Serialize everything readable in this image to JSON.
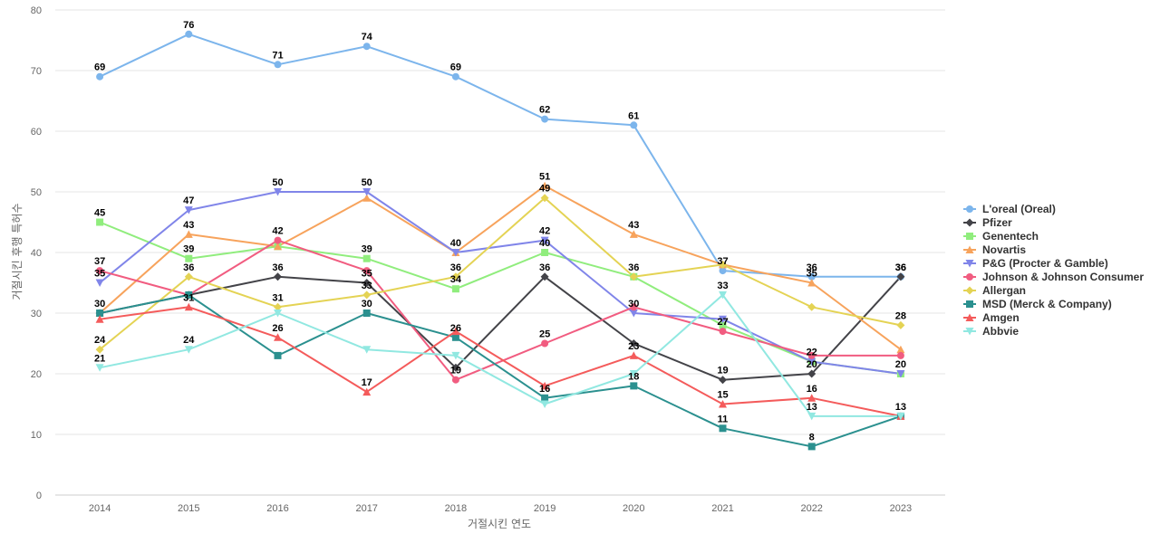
{
  "chart_data": {
    "type": "line",
    "xlabel": "거절시킨 연도",
    "ylabel": "거절시킨 후행 특허수",
    "ylim": [
      0,
      80
    ],
    "yticks": [
      0,
      10,
      20,
      30,
      40,
      50,
      60,
      70,
      80
    ],
    "grid": true,
    "legend_position": "right",
    "x": [
      "2014",
      "2015",
      "2016",
      "2017",
      "2018",
      "2019",
      "2020",
      "2021",
      "2022",
      "2023"
    ],
    "series": [
      {
        "name": "L'oreal (Oreal)",
        "color": "#7cb5ec",
        "marker": "circle",
        "values": [
          69,
          76,
          71,
          74,
          69,
          62,
          61,
          37,
          36,
          36
        ]
      },
      {
        "name": "Pfizer",
        "color": "#434348",
        "marker": "diamond",
        "values": [
          30,
          33,
          36,
          35,
          21,
          36,
          25,
          19,
          20,
          36
        ]
      },
      {
        "name": "Genentech",
        "color": "#90ed7d",
        "marker": "square",
        "values": [
          45,
          39,
          41,
          39,
          34,
          40,
          36,
          28,
          22,
          20
        ]
      },
      {
        "name": "Novartis",
        "color": "#f7a35c",
        "marker": "triangle",
        "values": [
          30,
          43,
          41,
          49,
          40,
          51,
          43,
          38,
          35,
          24
        ]
      },
      {
        "name": "P&G (Procter & Gamble)",
        "color": "#8085e9",
        "marker": "triangle-down",
        "values": [
          35,
          47,
          50,
          50,
          40,
          42,
          30,
          29,
          22,
          20
        ]
      },
      {
        "name": "Johnson & Johnson Consumer",
        "color": "#f15c80",
        "marker": "circle",
        "values": [
          37,
          33,
          42,
          37,
          19,
          25,
          31,
          27,
          23,
          23
        ]
      },
      {
        "name": "Allergan",
        "color": "#e4d354",
        "marker": "diamond",
        "values": [
          24,
          36,
          31,
          33,
          36,
          49,
          36,
          38,
          31,
          28
        ]
      },
      {
        "name": "MSD (Merck & Company)",
        "color": "#2b908f",
        "marker": "square",
        "values": [
          30,
          33,
          23,
          30,
          26,
          16,
          18,
          11,
          8,
          13
        ]
      },
      {
        "name": "Amgen",
        "color": "#f45b5b",
        "marker": "triangle",
        "values": [
          29,
          31,
          26,
          17,
          27,
          18,
          23,
          15,
          16,
          13
        ]
      },
      {
        "name": "Abbvie",
        "color": "#91e8e1",
        "marker": "triangle-down",
        "values": [
          21,
          24,
          30,
          24,
          23,
          15,
          20,
          33,
          13,
          13
        ]
      }
    ],
    "data_labels": [
      {
        "series": "L'oreal (Oreal)",
        "indices": [
          0,
          1,
          2,
          3,
          4,
          5,
          6,
          7,
          8,
          9
        ]
      },
      {
        "series": "Pfizer",
        "indices": [
          2,
          3,
          5,
          7,
          8,
          9
        ]
      },
      {
        "series": "Genentech",
        "indices": [
          0,
          1,
          3,
          4,
          5,
          6
        ]
      },
      {
        "series": "Novartis",
        "indices": [
          1,
          4,
          5,
          6,
          8
        ]
      },
      {
        "series": "P&G (Procter & Gamble)",
        "indices": [
          0,
          1,
          2,
          3,
          5,
          6,
          8,
          9
        ]
      },
      {
        "series": "Johnson & Johnson Consumer",
        "indices": [
          0,
          2,
          4,
          5,
          7
        ]
      },
      {
        "series": "Allergan",
        "indices": [
          0,
          1,
          2,
          3,
          4,
          5,
          9
        ]
      },
      {
        "series": "MSD (Merck & Company)",
        "indices": [
          0,
          3,
          4,
          5,
          6,
          7,
          8,
          9
        ]
      },
      {
        "series": "Amgen",
        "indices": [
          1,
          2,
          3,
          6,
          7,
          8
        ]
      },
      {
        "series": "Abbvie",
        "indices": [
          0,
          1,
          7,
          8
        ]
      }
    ]
  }
}
